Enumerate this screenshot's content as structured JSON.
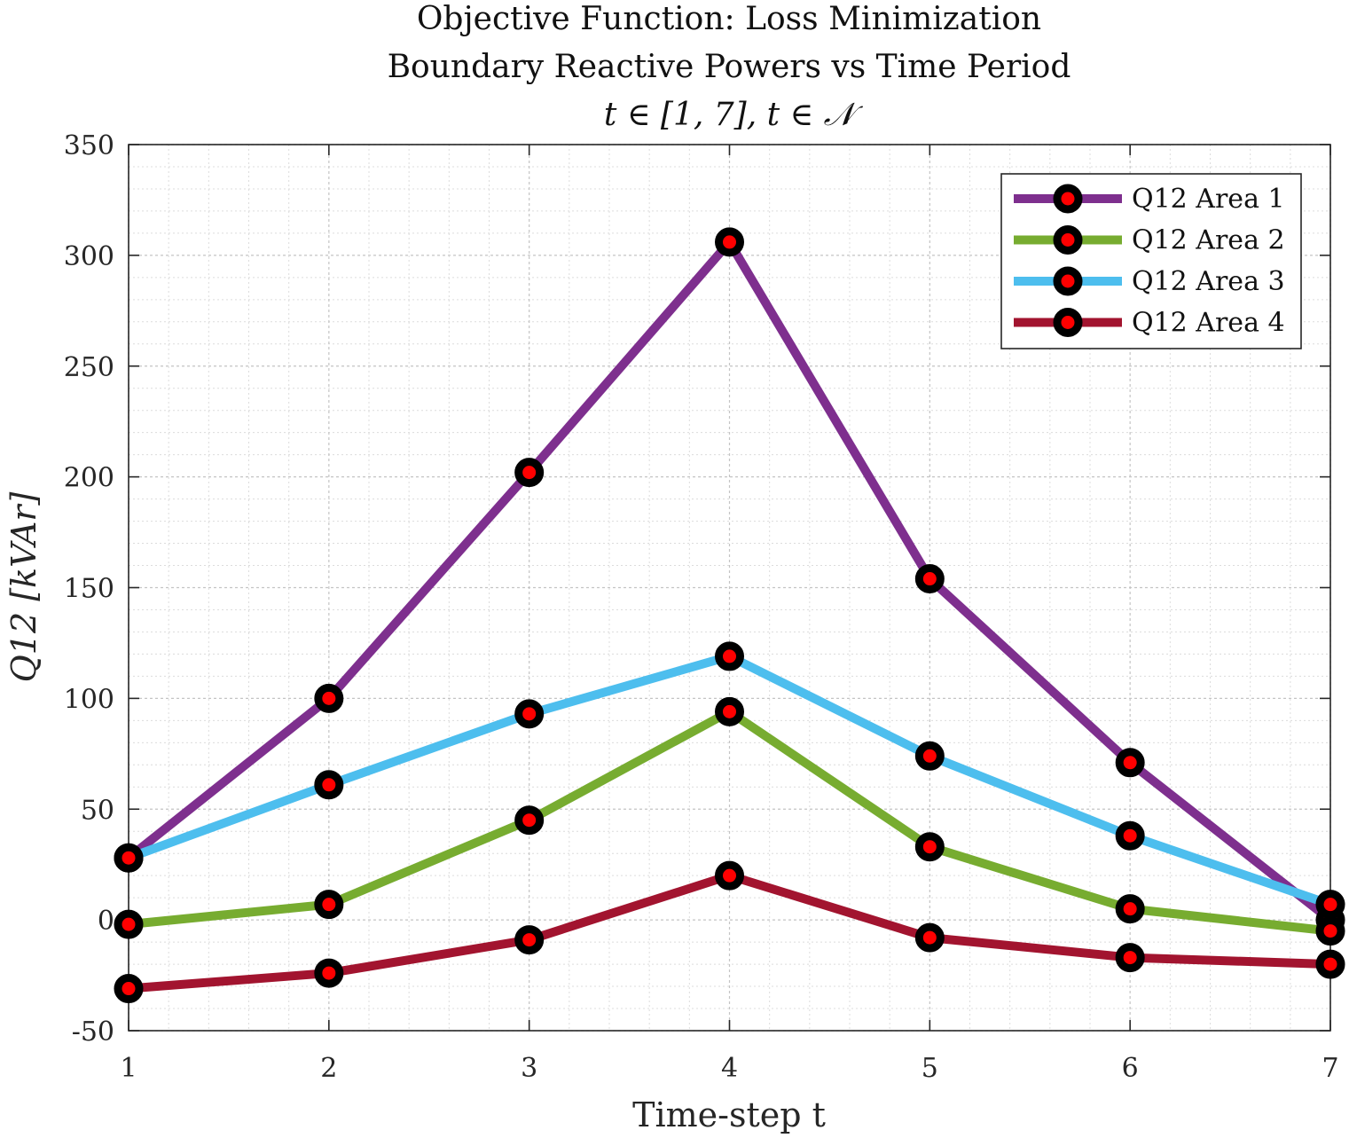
{
  "chart_data": {
    "type": "line",
    "title_lines": [
      "Objective Function: Loss Minimization",
      "Boundary Reactive Powers vs Time Period",
      "t ∈ [1, 7], t ∈ 𝒩"
    ],
    "xlabel": "Time-step t",
    "ylabel": "Q12 [kVAr]",
    "x": [
      1,
      2,
      3,
      4,
      5,
      6,
      7
    ],
    "xlim": [
      1,
      7
    ],
    "ylim": [
      -50,
      350
    ],
    "xticks": [
      "1",
      "2",
      "3",
      "4",
      "5",
      "6",
      "7"
    ],
    "yticks": [
      "-50",
      "0",
      "50",
      "100",
      "150",
      "200",
      "250",
      "300",
      "350"
    ],
    "grid": "on (major and minor)",
    "legend_position": "top-right",
    "marker": {
      "edge_color": "#000000",
      "face_color": "#ff0000"
    },
    "series": [
      {
        "name": "Q12 Area 1",
        "color": "#7e2f8e",
        "values": [
          28,
          100,
          202,
          306,
          154,
          71,
          0
        ]
      },
      {
        "name": "Q12 Area 2",
        "color": "#77ac30",
        "values": [
          -2,
          7,
          45,
          94,
          33,
          5,
          -5
        ]
      },
      {
        "name": "Q12 Area 3",
        "color": "#4dbeee",
        "values": [
          28,
          61,
          93,
          119,
          74,
          38,
          7
        ]
      },
      {
        "name": "Q12 Area 4",
        "color": "#a2142f",
        "values": [
          -31,
          -24,
          -9,
          20,
          -8,
          -17,
          -20
        ]
      }
    ]
  }
}
